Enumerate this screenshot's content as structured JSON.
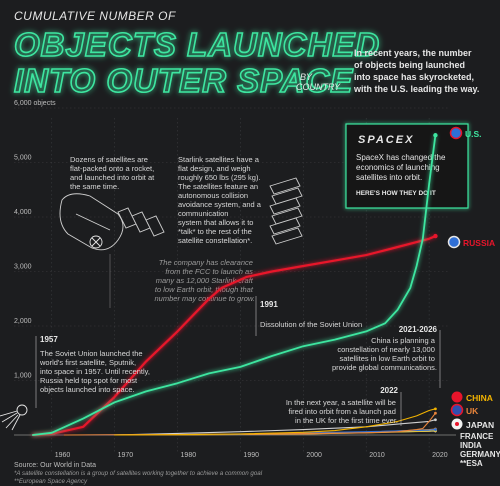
{
  "header": {
    "kicker": "CUMULATIVE NUMBER OF",
    "title_line1": "OBJECTS LAUNCHED",
    "title_line2": "INTO OUTER SPACE",
    "by_line1": "BY",
    "by_line2": "COUNTRY",
    "intro_lines": [
      "In recent years, the number",
      "of objects being launched",
      "into space has skyrocketed,",
      "with the U.S. leading the way."
    ]
  },
  "colors": {
    "background": "#1c1d1f",
    "us": "#3ee6a0",
    "russia": "#e8152b",
    "china": "#f2b300",
    "uk": "#e8843a",
    "japan": "#cfcfcf",
    "france": "#2f6fd6",
    "india": "#f29b38",
    "germany": "#e0c23a",
    "esa": "#ffffff",
    "grid": "#3a3b3e",
    "text": "#e6e6e6",
    "muted": "#9a9a9a"
  },
  "annotations": {
    "dozens": [
      "Dozens of satellites are",
      "flat-packed onto a rocket,",
      "and launched into orbit at",
      "the same time."
    ],
    "starlink": [
      "Starlink satellites have a",
      "flat design, and weigh",
      "roughly 650 lbs (295 kg).",
      "The satellites feature an",
      "autonomous collision",
      "avoidance system, and a",
      "communication",
      "system that allows it to",
      "*talk* to the rest of the",
      "satellite constellation*."
    ],
    "fcc": [
      "The company has clearance",
      "from the FCC to launch as",
      "many as 12,000 Starlink craft",
      "to low Earth orbit, though that",
      "number may continue to grow."
    ],
    "spacex_logo": "SPACEX",
    "spacex_body": [
      "SpaceX has changed the",
      "economics of launching",
      "satellites into orbit."
    ],
    "spacex_cta": "HERE'S HOW THEY DO IT",
    "y1991_label": "1991",
    "y1991_text": "Dissolution of the Soviet Union",
    "y1957_label": "1957",
    "y1957_text": [
      "The Soviet Union launched the",
      "world's first satellite, Sputnik,",
      "into space in 1957. Until recently,",
      "Russia held top spot for most",
      "objects launched into space."
    ],
    "y2021_label": "2021-2026",
    "y2021_text": [
      "China is planning a",
      "constellation of nearly 13,000",
      "satellites in low Earth orbit to",
      "provide global communications."
    ],
    "y2022_label": "2022",
    "y2022_text": [
      "In the next year, a satellite will be",
      "fired into orbit from a launch pad",
      "in the UK for the first time ever."
    ]
  },
  "labels": {
    "us": "U.S.",
    "russia": "RUSSIA",
    "china": "CHINA",
    "uk": "UK",
    "japan": "JAPAN",
    "france": "FRANCE",
    "india": "INDIA",
    "germany": "GERMANY",
    "esa": "**ESA"
  },
  "footer": {
    "source": "Source: Our World in Data",
    "note1": "*A satellite constellation is a group of satellites working together to achieve a common goal",
    "note2": "**European Space Agency"
  },
  "chart_data": {
    "type": "line",
    "title": "CUMULATIVE NUMBER OF OBJECTS LAUNCHED INTO OUTER SPACE BY COUNTRY",
    "ylabel": "6,000 objects",
    "xlim": [
      1954,
      2023
    ],
    "ylim": [
      0,
      6000
    ],
    "x_ticks": [
      1960,
      1970,
      1980,
      1990,
      2000,
      2010,
      2020
    ],
    "y_ticks": [
      1000,
      2000,
      3000,
      4000,
      5000,
      6000
    ],
    "y_tick_labels": [
      "1,000",
      "2,000",
      "3,000",
      "4,000",
      "5,000",
      "6,000 objects"
    ],
    "grid": true,
    "series": [
      {
        "name": "U.S.",
        "x": [
          1957,
          1960,
          1965,
          1970,
          1975,
          1980,
          1985,
          1990,
          1995,
          2000,
          2005,
          2010,
          2013,
          2015,
          2017,
          2018,
          2019,
          2020,
          2021
        ],
        "values": [
          0,
          40,
          300,
          600,
          800,
          950,
          1130,
          1250,
          1450,
          1630,
          1750,
          1900,
          2050,
          2300,
          2700,
          3100,
          3600,
          4600,
          5500
        ]
      },
      {
        "name": "RUSSIA",
        "x": [
          1957,
          1960,
          1965,
          1970,
          1975,
          1980,
          1985,
          1987,
          1990,
          1991,
          1995,
          2000,
          2005,
          2010,
          2015,
          2020,
          2021
        ],
        "values": [
          0,
          20,
          150,
          700,
          1350,
          1900,
          2500,
          2700,
          2850,
          2900,
          3000,
          3100,
          3200,
          3300,
          3450,
          3600,
          3650
        ]
      },
      {
        "name": "CHINA",
        "x": [
          1970,
          1980,
          1990,
          2000,
          2005,
          2010,
          2015,
          2018,
          2020,
          2021
        ],
        "values": [
          0,
          5,
          20,
          50,
          80,
          150,
          250,
          350,
          450,
          480
        ]
      },
      {
        "name": "UK",
        "x": [
          1962,
          1980,
          2000,
          2010,
          2015,
          2018,
          2019,
          2020,
          2021
        ],
        "values": [
          0,
          10,
          25,
          40,
          60,
          100,
          120,
          250,
          400
        ]
      },
      {
        "name": "JAPAN",
        "x": [
          1970,
          1980,
          1990,
          2000,
          2010,
          2015,
          2020,
          2021
        ],
        "values": [
          0,
          30,
          60,
          100,
          150,
          200,
          250,
          280
        ]
      },
      {
        "name": "FRANCE",
        "x": [
          1965,
          1990,
          2000,
          2010,
          2020,
          2021
        ],
        "values": [
          0,
          15,
          40,
          60,
          90,
          100
        ]
      },
      {
        "name": "INDIA",
        "x": [
          1975,
          1990,
          2000,
          2010,
          2020,
          2021
        ],
        "values": [
          0,
          10,
          20,
          50,
          100,
          110
        ]
      },
      {
        "name": "GERMANY",
        "x": [
          1969,
          1990,
          2000,
          2010,
          2020,
          2021
        ],
        "values": [
          0,
          10,
          20,
          40,
          70,
          80
        ]
      },
      {
        "name": "**ESA",
        "x": [
          1975,
          1990,
          2000,
          2010,
          2020,
          2021
        ],
        "values": [
          0,
          15,
          30,
          50,
          70,
          75
        ]
      }
    ]
  }
}
